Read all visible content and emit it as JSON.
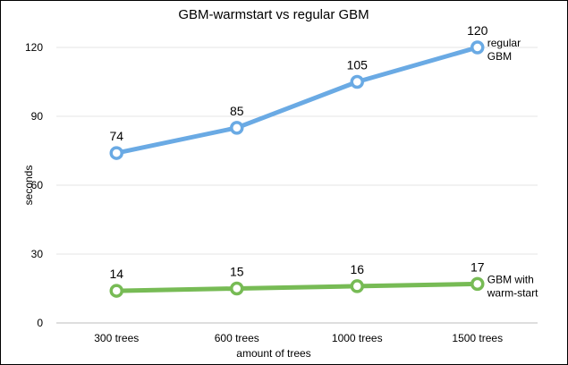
{
  "chart_data": {
    "type": "line",
    "title": "GBM-warmstart vs regular GBM",
    "xlabel": "amount of trees",
    "ylabel": "seconds",
    "categories": [
      "300 trees",
      "600 trees",
      "1000 trees",
      "1500 trees"
    ],
    "ylim": [
      0,
      120
    ],
    "yticks": [
      0,
      30,
      60,
      90,
      120
    ],
    "grid": true,
    "series": [
      {
        "name": "regular GBM",
        "label_lines": [
          "regular",
          "GBM"
        ],
        "values": [
          74,
          85,
          105,
          120
        ],
        "color": "#6aaae4"
      },
      {
        "name": "GBM with warm-start",
        "label_lines": [
          "GBM with",
          "warm-start"
        ],
        "values": [
          14,
          15,
          16,
          17
        ],
        "color": "#77bb55"
      }
    ]
  }
}
